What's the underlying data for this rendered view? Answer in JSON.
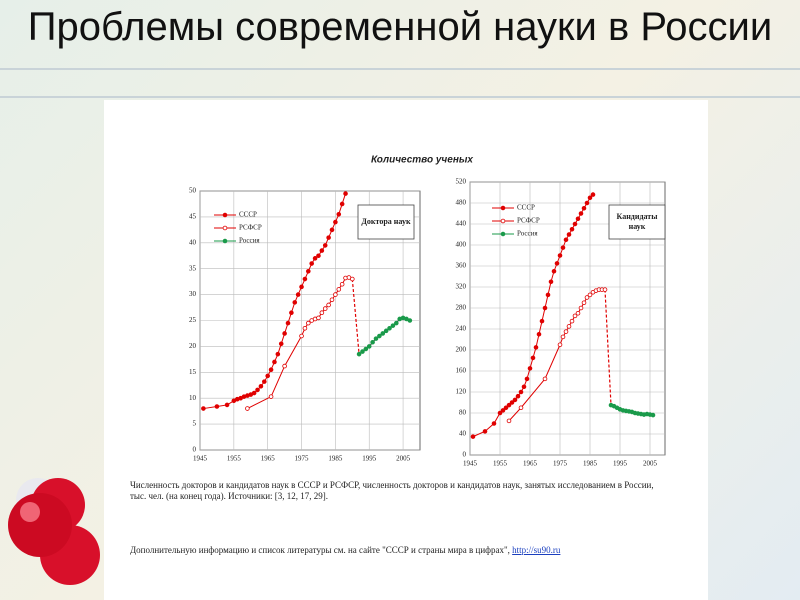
{
  "slide_title": "Проблемы современной науки в России",
  "header": "Количество ученых",
  "caption": "Численность докторов и кандидатов наук в СССР и РСФСР, численность докторов и кандидатов наук, занятых исследованием в России, тыс. чел. (на конец года). Источники: [3, 12, 17, 29].",
  "footer": {
    "text": "Дополнительную информацию и список литературы см. на сайте \"СССР и страны мира в цифрах\",",
    "link": "http://su90.ru"
  },
  "chart_data": [
    {
      "type": "line",
      "annotation": "Доктора наук",
      "grid": true,
      "xlim": [
        1945,
        2010
      ],
      "xticks": [
        1945,
        1955,
        1965,
        1975,
        1985,
        1995,
        2005
      ],
      "ylim": [
        0,
        50
      ],
      "yticks": [
        0,
        5,
        10,
        15,
        20,
        25,
        30,
        35,
        40,
        45,
        50
      ],
      "series": [
        {
          "name": "СССР",
          "color": "#e00000",
          "marker": "filled",
          "x": [
            1946,
            1950,
            1953,
            1955,
            1956,
            1957,
            1958,
            1959,
            1960,
            1961,
            1962,
            1963,
            1964,
            1965,
            1966,
            1967,
            1968,
            1969,
            1970,
            1971,
            1972,
            1973,
            1974,
            1975,
            1976,
            1977,
            1978,
            1979,
            1980,
            1981,
            1982,
            1983,
            1984,
            1985,
            1986,
            1987,
            1988
          ],
          "values": [
            8.0,
            8.4,
            8.7,
            9.5,
            9.8,
            10.0,
            10.3,
            10.5,
            10.7,
            11.0,
            11.6,
            12.3,
            13.2,
            14.3,
            15.5,
            17.0,
            18.5,
            20.5,
            22.5,
            24.5,
            26.5,
            28.5,
            30.0,
            31.5,
            33.0,
            34.5,
            36.0,
            37.0,
            37.5,
            38.5,
            39.5,
            41.0,
            42.5,
            44.0,
            45.5,
            47.5,
            49.5
          ]
        },
        {
          "name": "РСФСР",
          "color": "#e00000",
          "marker": "hollow",
          "x": [
            1959,
            1966,
            1970,
            1975,
            1976,
            1977,
            1978,
            1979,
            1980,
            1981,
            1982,
            1983,
            1984,
            1985,
            1986,
            1987,
            1988,
            1989,
            1990
          ],
          "values": [
            8.0,
            10.3,
            16.2,
            22.0,
            23.5,
            24.5,
            25.0,
            25.3,
            25.5,
            26.5,
            27.3,
            28.0,
            29.0,
            30.0,
            31.0,
            32.0,
            33.2,
            33.3,
            33.0
          ]
        },
        {
          "name": "Россия",
          "color": "#1a9a4a",
          "marker": "filled",
          "x": [
            1992,
            1993,
            1994,
            1995,
            1996,
            1997,
            1998,
            1999,
            2000,
            2001,
            2002,
            2003,
            2004,
            2005,
            2006,
            2007
          ],
          "values": [
            18.5,
            19.0,
            19.5,
            20.0,
            20.8,
            21.5,
            22.0,
            22.5,
            23.0,
            23.5,
            24.0,
            24.5,
            25.3,
            25.5,
            25.3,
            25.0
          ]
        }
      ]
    },
    {
      "type": "line",
      "annotation": "Кандидаты наук",
      "grid": true,
      "xlim": [
        1945,
        2010
      ],
      "xticks": [
        1945,
        1955,
        1965,
        1975,
        1985,
        1995,
        2005
      ],
      "ylim": [
        0,
        520
      ],
      "yticks": [
        0,
        40,
        80,
        120,
        160,
        200,
        240,
        280,
        320,
        360,
        400,
        440,
        480,
        520
      ],
      "series": [
        {
          "name": "СССР",
          "color": "#e00000",
          "marker": "filled",
          "x": [
            1946,
            1950,
            1953,
            1955,
            1956,
            1957,
            1958,
            1959,
            1960,
            1961,
            1962,
            1963,
            1964,
            1965,
            1966,
            1967,
            1968,
            1969,
            1970,
            1971,
            1972,
            1973,
            1974,
            1975,
            1976,
            1977,
            1978,
            1979,
            1980,
            1981,
            1982,
            1983,
            1984,
            1985,
            1986
          ],
          "values": [
            35,
            45,
            60,
            80,
            85,
            90,
            95,
            100,
            105,
            112,
            120,
            130,
            145,
            165,
            185,
            205,
            230,
            255,
            280,
            305,
            330,
            350,
            365,
            380,
            395,
            410,
            420,
            430,
            440,
            450,
            460,
            470,
            480,
            490,
            496
          ]
        },
        {
          "name": "РСФСР",
          "color": "#e00000",
          "marker": "hollow",
          "x": [
            1958,
            1962,
            1970,
            1975,
            1976,
            1977,
            1978,
            1979,
            1980,
            1981,
            1982,
            1983,
            1984,
            1985,
            1986,
            1987,
            1988,
            1989,
            1990
          ],
          "values": [
            65,
            90,
            145,
            210,
            225,
            235,
            245,
            255,
            265,
            270,
            280,
            290,
            300,
            305,
            310,
            313,
            315,
            315,
            315
          ]
        },
        {
          "name": "Россия",
          "color": "#1a9a4a",
          "marker": "filled",
          "x": [
            1992,
            1993,
            1994,
            1995,
            1996,
            1997,
            1998,
            1999,
            2000,
            2001,
            2002,
            2003,
            2004,
            2005,
            2006
          ],
          "values": [
            95,
            93,
            90,
            87,
            85,
            84,
            83,
            82,
            80,
            79,
            78,
            77,
            78,
            77,
            76
          ]
        }
      ]
    }
  ]
}
